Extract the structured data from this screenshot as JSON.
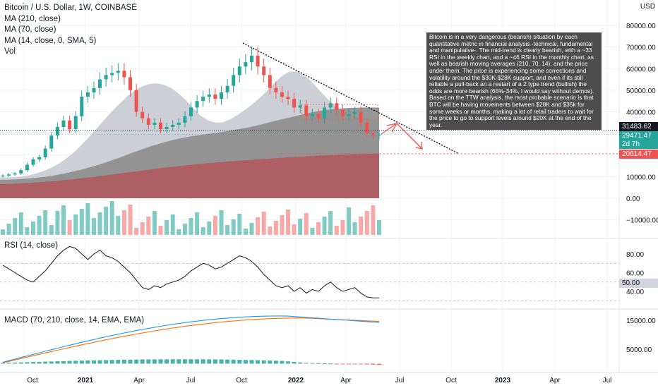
{
  "legend": {
    "title": "Bitcoin / U.S. Dollar, 1W, COINBASE",
    "items": [
      "MA (210, close)",
      "MA (70, close)",
      "MA (14, close, 0, SMA, 5)",
      "Vol"
    ]
  },
  "rsi_legend": "RSI (14, close)",
  "macd_legend": "MACD (70, 210, close, 14, EMA, EMA)",
  "note": "Bitcoin is in a very dangerous (bearish) situation by each quantitative metric in financial analysis -technical, fundamental and manipulative-. The mid-trend is clearly bearish, with a ~33 RSI in the weekly chart, and a ~46 RSI in the monthly chart, as well as bearish moving averages (210, 70, 14), and the price under them. The price is experiencing some corrections and volatility around the $30K-$28K support, and even if its still reliable a pull-back an a restart of a 2 type trend (bullish) the odds are more bearish (65%-34%, I would say without demos). Based on the TTW analysis, the most probable scenario is that BTC will be having movements between $28K and $35k for some weeks or months, making a lot of retail traders to wait for the price to go to support levels around $20K at the end of the year.",
  "price_tags": {
    "currency": "USD",
    "crosshair": "31483.62",
    "last": "29471.47",
    "countdown": "2d 7h",
    "support": "20614.47",
    "rsi_level": "50.00"
  },
  "colors": {
    "up": "#26a69a",
    "down": "#ef5350",
    "vol_up": "#80cbc4",
    "vol_down": "#f7a9a7",
    "ma210_fill": "#b05a5e",
    "ma70_fill": "#8e8e8e",
    "ma14_fill": "#c9cbd3",
    "macd": "#2196f3",
    "signal": "#ff6d00",
    "hist_up": "#26a69a",
    "hist_down": "#ff5252"
  },
  "chart_data": {
    "type": "candlestick",
    "price_axis": {
      "ticks": [
        80000,
        70000,
        60000,
        50000,
        40000,
        30000,
        20000,
        10000,
        0,
        -10000
      ],
      "tick_labels": [
        "80000.00",
        "70000.00",
        "60000.00",
        "50000.00",
        "40000.00",
        "30000.00",
        "20000.00",
        "10000.00",
        "0.00",
        "−10000.00"
      ]
    },
    "rsi_axis": {
      "ticks": [
        80,
        60,
        50,
        40
      ],
      "tick_labels": [
        "80.00",
        "60.00",
        "50.00",
        "40.00"
      ]
    },
    "macd_axis": {
      "ticks": [
        15000,
        5000
      ],
      "tick_labels": [
        "15000.00",
        "5000.00"
      ]
    },
    "time_labels": [
      "Oct",
      "2021",
      "Apr",
      "Jul",
      "Oct",
      "2022",
      "Apr",
      "Jul",
      "Oct",
      "2023",
      "Apr",
      "Jul"
    ],
    "close_path": [
      10500,
      11000,
      11500,
      13000,
      15500,
      18000,
      19000,
      23000,
      29000,
      33000,
      36000,
      32000,
      38000,
      47000,
      49000,
      51000,
      55000,
      57000,
      58000,
      59000,
      56000,
      50000,
      40000,
      37000,
      34000,
      35000,
      32000,
      33000,
      34000,
      35000,
      38000,
      42000,
      45000,
      47000,
      48000,
      46000,
      49000,
      52000,
      57000,
      61000,
      63000,
      66000,
      61000,
      57000,
      51000,
      49000,
      47000,
      46000,
      42000,
      43000,
      38000,
      39000,
      37000,
      42000,
      44000,
      41000,
      38000,
      39000,
      40000,
      35000,
      30000,
      29000,
      29471
    ],
    "ma210": [
      6500,
      6600,
      6800,
      7000,
      7200,
      7400,
      7700,
      8000,
      8400,
      8800,
      9200,
      9600,
      10000,
      10500,
      11000,
      11500,
      12000,
      12500,
      13000,
      13500,
      14000,
      14400,
      14800,
      15200,
      15600,
      16000,
      16300,
      16600,
      16900,
      17200,
      17500,
      17700,
      18000,
      18200,
      18500,
      18700,
      19000,
      19200,
      19400,
      19600,
      19800,
      19950,
      20100,
      20250,
      20400,
      20500,
      20600,
      20614
    ],
    "ma70": [
      8500,
      8600,
      8700,
      8900,
      9200,
      9500,
      9900,
      10400,
      11000,
      11700,
      12500,
      13300,
      14200,
      15200,
      16300,
      17500,
      18700,
      20000,
      21300,
      22500,
      23700,
      24800,
      25800,
      26700,
      27500,
      28200,
      28800,
      29300,
      29800,
      30300,
      30800,
      31300,
      31900,
      32500,
      33200,
      34000,
      34900,
      35800,
      36600,
      37400,
      38200,
      39000,
      39800,
      40400,
      40900,
      41300,
      41600,
      41800,
      41900,
      42000,
      42000,
      41900
    ],
    "ma14": [
      9500,
      9600,
      9800,
      10100,
      10700,
      11600,
      12800,
      14300,
      16200,
      18600,
      21500,
      24800,
      28400,
      32300,
      36200,
      40000,
      43500,
      46800,
      49600,
      51600,
      52800,
      53200,
      52600,
      51000,
      48600,
      45400,
      41600,
      38200,
      36000,
      35000,
      35200,
      36600,
      38600,
      41000,
      43600,
      46600,
      50000,
      53600,
      56800,
      58600,
      58600,
      56800,
      53600,
      49800,
      46200,
      43000,
      40600,
      38800,
      37600,
      36800,
      36400,
      36100
    ],
    "support_level": 20614.47,
    "crosshair_level": 31483.62,
    "annotations": [
      "descending trendline (dotted)",
      "projected zigzag path (red arrows)",
      "horizontal support line 20614.47 (dotted red)"
    ]
  }
}
